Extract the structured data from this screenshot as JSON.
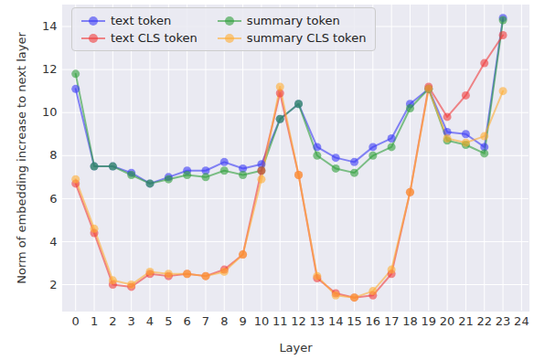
{
  "chart_data": {
    "type": "line",
    "x_label": "Layer",
    "y_label": "Norm of embedding increase to next layer",
    "x": [
      0,
      1,
      2,
      3,
      4,
      5,
      6,
      7,
      8,
      9,
      10,
      11,
      12,
      13,
      14,
      15,
      16,
      17,
      18,
      19,
      20,
      21,
      22,
      23
    ],
    "xlim": [
      -0.7,
      24.4
    ],
    "xticks": [
      0,
      1,
      2,
      3,
      4,
      5,
      6,
      7,
      8,
      9,
      10,
      11,
      12,
      13,
      14,
      15,
      16,
      17,
      18,
      19,
      20,
      21,
      22,
      23,
      24
    ],
    "ylim": [
      0.77,
      15
    ],
    "yticks": [
      2,
      4,
      6,
      8,
      10,
      12,
      14
    ],
    "grid": true,
    "legend": "upper left",
    "marker": "circle",
    "series": [
      {
        "name": "text token",
        "color": "#3b3bf5",
        "values": [
          11.1,
          7.5,
          7.5,
          7.2,
          6.7,
          7.0,
          7.3,
          7.3,
          7.7,
          7.4,
          7.6,
          9.7,
          10.4,
          8.4,
          7.9,
          7.7,
          8.4,
          8.8,
          10.4,
          11.1,
          9.1,
          9.0,
          8.4,
          14.4
        ]
      },
      {
        "name": "summary token",
        "color": "#2e9e3a",
        "values": [
          11.8,
          7.5,
          7.5,
          7.1,
          6.7,
          6.9,
          7.1,
          7.0,
          7.3,
          7.1,
          7.3,
          9.7,
          10.4,
          8.0,
          7.4,
          7.2,
          8.0,
          8.4,
          10.2,
          11.1,
          8.7,
          8.5,
          8.1,
          14.3
        ]
      },
      {
        "name": "text CLS token",
        "color": "#f03c3c",
        "values": [
          6.7,
          4.4,
          2.0,
          1.9,
          2.5,
          2.4,
          2.5,
          2.4,
          2.7,
          3.4,
          7.3,
          10.9,
          7.1,
          2.3,
          1.6,
          1.4,
          1.5,
          2.5,
          6.3,
          11.2,
          9.8,
          10.8,
          12.3,
          13.6
        ]
      },
      {
        "name": "summary CLS token",
        "color": "#ffad33",
        "values": [
          6.9,
          4.6,
          2.2,
          2.0,
          2.6,
          2.5,
          2.5,
          2.4,
          2.6,
          3.4,
          6.9,
          11.2,
          7.1,
          2.4,
          1.5,
          1.4,
          1.7,
          2.7,
          6.3,
          11.1,
          8.8,
          8.6,
          8.9,
          11.0
        ]
      }
    ]
  }
}
